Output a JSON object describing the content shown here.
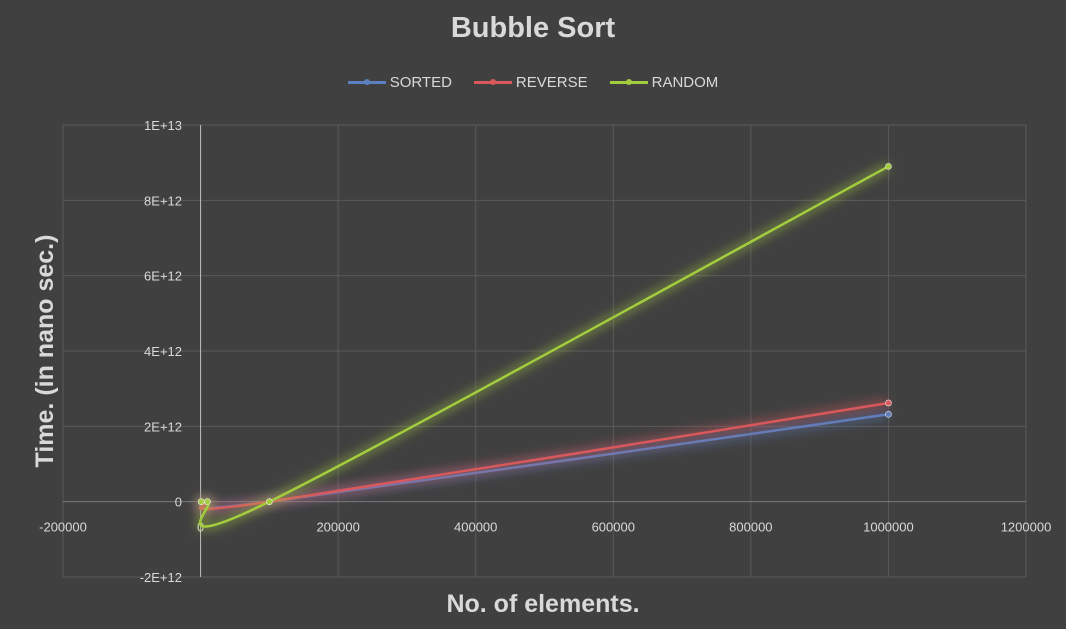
{
  "chart_data": {
    "type": "line",
    "title": "Bubble Sort",
    "xlabel": "No. of elements.",
    "ylabel": "Time. (in nano sec.)",
    "xlim": [
      -200000,
      1200000
    ],
    "ylim": [
      -2000000000000.0,
      10000000000000.0
    ],
    "x_ticks": [
      -200000,
      0,
      200000,
      400000,
      600000,
      800000,
      1000000,
      1200000
    ],
    "x_tick_labels": [
      "-200000",
      "0",
      "200000",
      "400000",
      "600000",
      "800000",
      "1000000",
      "1200000"
    ],
    "y_ticks": [
      -2000000000000.0,
      0,
      2000000000000.0,
      4000000000000.0,
      6000000000000.0,
      8000000000000.0,
      10000000000000.0
    ],
    "y_tick_labels": [
      "-2E+12",
      "0",
      "2E+12",
      "4E+12",
      "6E+12",
      "8E+12",
      "1E+13"
    ],
    "grid": true,
    "legend_position": "top",
    "smoothed": true,
    "x": [
      1000,
      10000,
      100000,
      1000000
    ],
    "series": [
      {
        "name": "SORTED",
        "color": "#5b7fbf",
        "values": [
          0,
          0,
          0,
          2320000000000.0
        ]
      },
      {
        "name": "REVERSE",
        "color": "#d9585b",
        "values": [
          0,
          0,
          0,
          2620000000000.0
        ]
      },
      {
        "name": "RANDOM",
        "color": "#a3cc3e",
        "values": [
          0,
          0,
          0,
          8900000000000.0
        ]
      }
    ]
  }
}
